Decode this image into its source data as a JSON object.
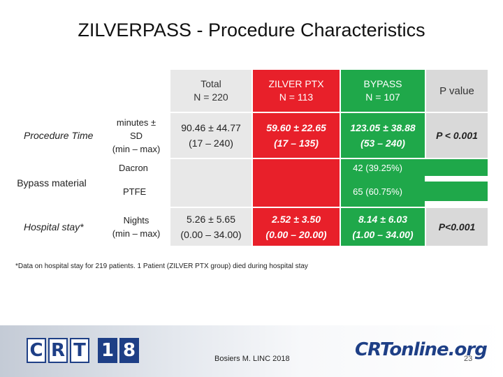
{
  "title": "ZILVERPASS - Procedure Characteristics",
  "columns": {
    "total": [
      "Total",
      "N = 220"
    ],
    "zilver": [
      "ZILVER PTX",
      "N = 113"
    ],
    "bypass": [
      "BYPASS",
      "N = 107"
    ],
    "pvalue": "P value"
  },
  "rows": {
    "procedure_time": {
      "label": "Procedure Time",
      "sublabel": [
        "minutes ±",
        "SD",
        "(min – max)"
      ],
      "total": [
        "90.46 ± 44.77",
        "(17 – 240)"
      ],
      "zilver": [
        "59.60 ± 22.65",
        "(17 – 135)"
      ],
      "bypass": [
        "123.05 ± 38.88",
        "(53 – 240)"
      ],
      "p": "P < 0.001"
    },
    "bypass_material": {
      "label": "Bypass material",
      "dacron": "Dacron",
      "dacron_value": "42 (39.25%)",
      "ptfe": "PTFE",
      "ptfe_value": "65 (60.75%)"
    },
    "hospital_stay": {
      "label": "Hospital stay*",
      "sublabel": [
        "Nights",
        "(min – max)"
      ],
      "total": [
        "5.26 ± 5.65",
        "(0.00 – 34.00)"
      ],
      "zilver": [
        "2.52 ± 3.50",
        "(0.00 – 20.00)"
      ],
      "bypass": [
        "8.14 ± 6.03",
        "(1.00 – 34.00)"
      ],
      "p": "P<0.001"
    }
  },
  "footnote": "*Data on hospital stay for 219 patients. 1 Patient (ZILVER PTX group) died during hospital stay",
  "footer": {
    "crt_letters": [
      "C",
      "R",
      "T",
      "1",
      "8"
    ],
    "presenter": "Bosiers M. LINC 2018",
    "online_logo": "CRTonline.org",
    "page": "23"
  },
  "colors": {
    "zilver": "#e8202a",
    "bypass": "#1fa84a",
    "brand": "#1e3f86"
  }
}
